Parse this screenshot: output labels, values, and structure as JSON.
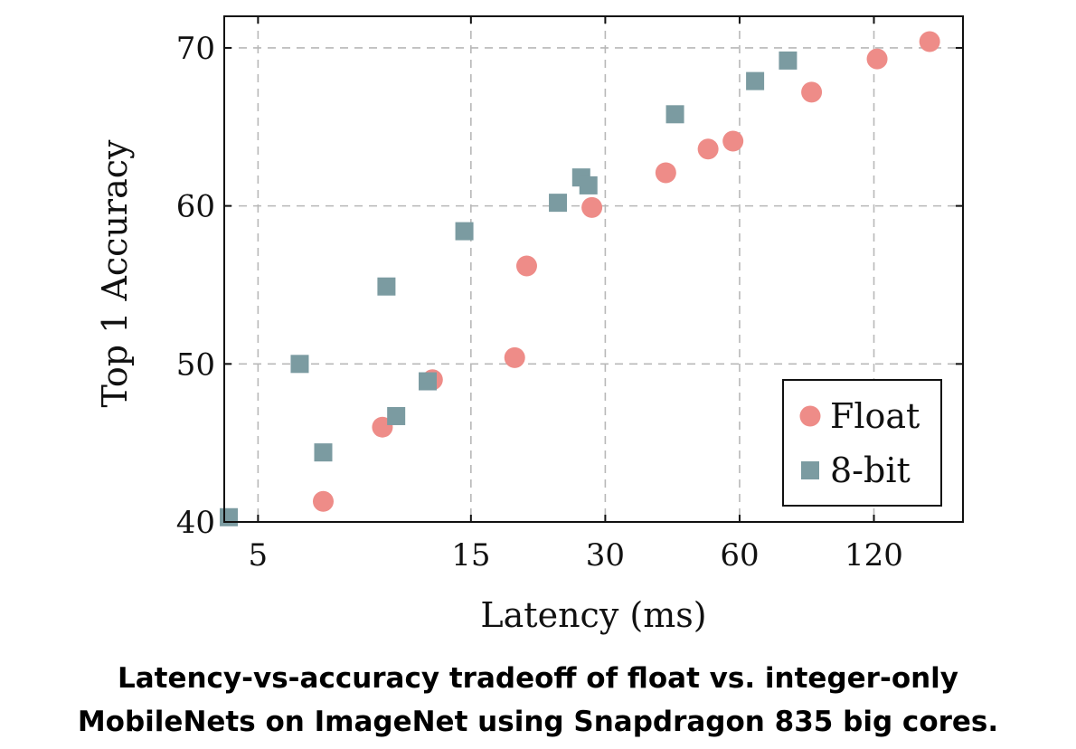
{
  "caption": {
    "line1": "Latency-vs-accuracy tradeoff of float vs. integer-only",
    "line2": "MobileNets on ImageNet using Snapdragon 835 big cores."
  },
  "chart_data": {
    "type": "scatter",
    "xlabel": "Latency (ms)",
    "ylabel": "Top 1 Accuracy",
    "x_scale": "log",
    "xlim": [
      4.2,
      190
    ],
    "ylim": [
      40,
      72
    ],
    "x_ticks": [
      5,
      15,
      30,
      60,
      120
    ],
    "x_tick_labels": [
      "5",
      "15",
      "30",
      "60",
      "120"
    ],
    "y_ticks": [
      40,
      50,
      60,
      70
    ],
    "y_tick_labels": [
      "40",
      "50",
      "60",
      "70"
    ],
    "grid": true,
    "legend_position": "bottom-right",
    "series": [
      {
        "name": "Float",
        "marker": "circle",
        "color": "#ee8c88",
        "points": [
          [
            7.0,
            41.3
          ],
          [
            9.5,
            46.0
          ],
          [
            12.3,
            49.0
          ],
          [
            18.8,
            50.4
          ],
          [
            20.0,
            56.2
          ],
          [
            28.0,
            59.9
          ],
          [
            41.0,
            62.1
          ],
          [
            51.0,
            63.6
          ],
          [
            58.0,
            64.1
          ],
          [
            87.0,
            67.2
          ],
          [
            122.0,
            69.3
          ],
          [
            160.0,
            70.4
          ]
        ]
      },
      {
        "name": "8-bit",
        "marker": "square",
        "color": "#7b9ba1",
        "points": [
          [
            4.3,
            40.3
          ],
          [
            6.2,
            50.0
          ],
          [
            7.0,
            44.4
          ],
          [
            9.7,
            54.9
          ],
          [
            10.2,
            46.7
          ],
          [
            12.0,
            48.9
          ],
          [
            14.5,
            58.4
          ],
          [
            23.5,
            60.2
          ],
          [
            26.5,
            61.8
          ],
          [
            27.5,
            61.3
          ],
          [
            43.0,
            65.8
          ],
          [
            65.0,
            67.9
          ],
          [
            77.0,
            69.2
          ]
        ]
      }
    ]
  }
}
